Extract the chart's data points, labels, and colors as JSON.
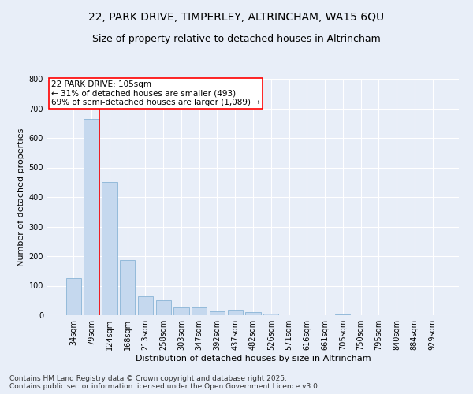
{
  "title_line1": "22, PARK DRIVE, TIMPERLEY, ALTRINCHAM, WA15 6QU",
  "title_line2": "Size of property relative to detached houses in Altrincham",
  "xlabel": "Distribution of detached houses by size in Altrincham",
  "ylabel": "Number of detached properties",
  "categories": [
    "34sqm",
    "79sqm",
    "124sqm",
    "168sqm",
    "213sqm",
    "258sqm",
    "303sqm",
    "347sqm",
    "392sqm",
    "437sqm",
    "482sqm",
    "526sqm",
    "571sqm",
    "616sqm",
    "661sqm",
    "705sqm",
    "750sqm",
    "795sqm",
    "840sqm",
    "884sqm",
    "929sqm"
  ],
  "values": [
    125,
    663,
    450,
    188,
    63,
    50,
    27,
    27,
    13,
    15,
    10,
    5,
    0,
    0,
    0,
    4,
    0,
    0,
    0,
    0,
    0
  ],
  "bar_color": "#c5d8ee",
  "bar_edge_color": "#7aaad0",
  "vline_x_index": 1,
  "vline_color": "red",
  "vline_linewidth": 1.2,
  "annotation_text": "22 PARK DRIVE: 105sqm\n← 31% of detached houses are smaller (493)\n69% of semi-detached houses are larger (1,089) →",
  "annotation_box_color": "white",
  "annotation_box_edgecolor": "red",
  "annotation_fontsize": 7.5,
  "ylim": [
    0,
    800
  ],
  "yticks": [
    0,
    100,
    200,
    300,
    400,
    500,
    600,
    700,
    800
  ],
  "background_color": "#e8eef8",
  "grid_color": "white",
  "title_fontsize": 10,
  "subtitle_fontsize": 9,
  "axis_label_fontsize": 8,
  "tick_fontsize": 7,
  "footer_line1": "Contains HM Land Registry data © Crown copyright and database right 2025.",
  "footer_line2": "Contains public sector information licensed under the Open Government Licence v3.0.",
  "footer_fontsize": 6.5
}
